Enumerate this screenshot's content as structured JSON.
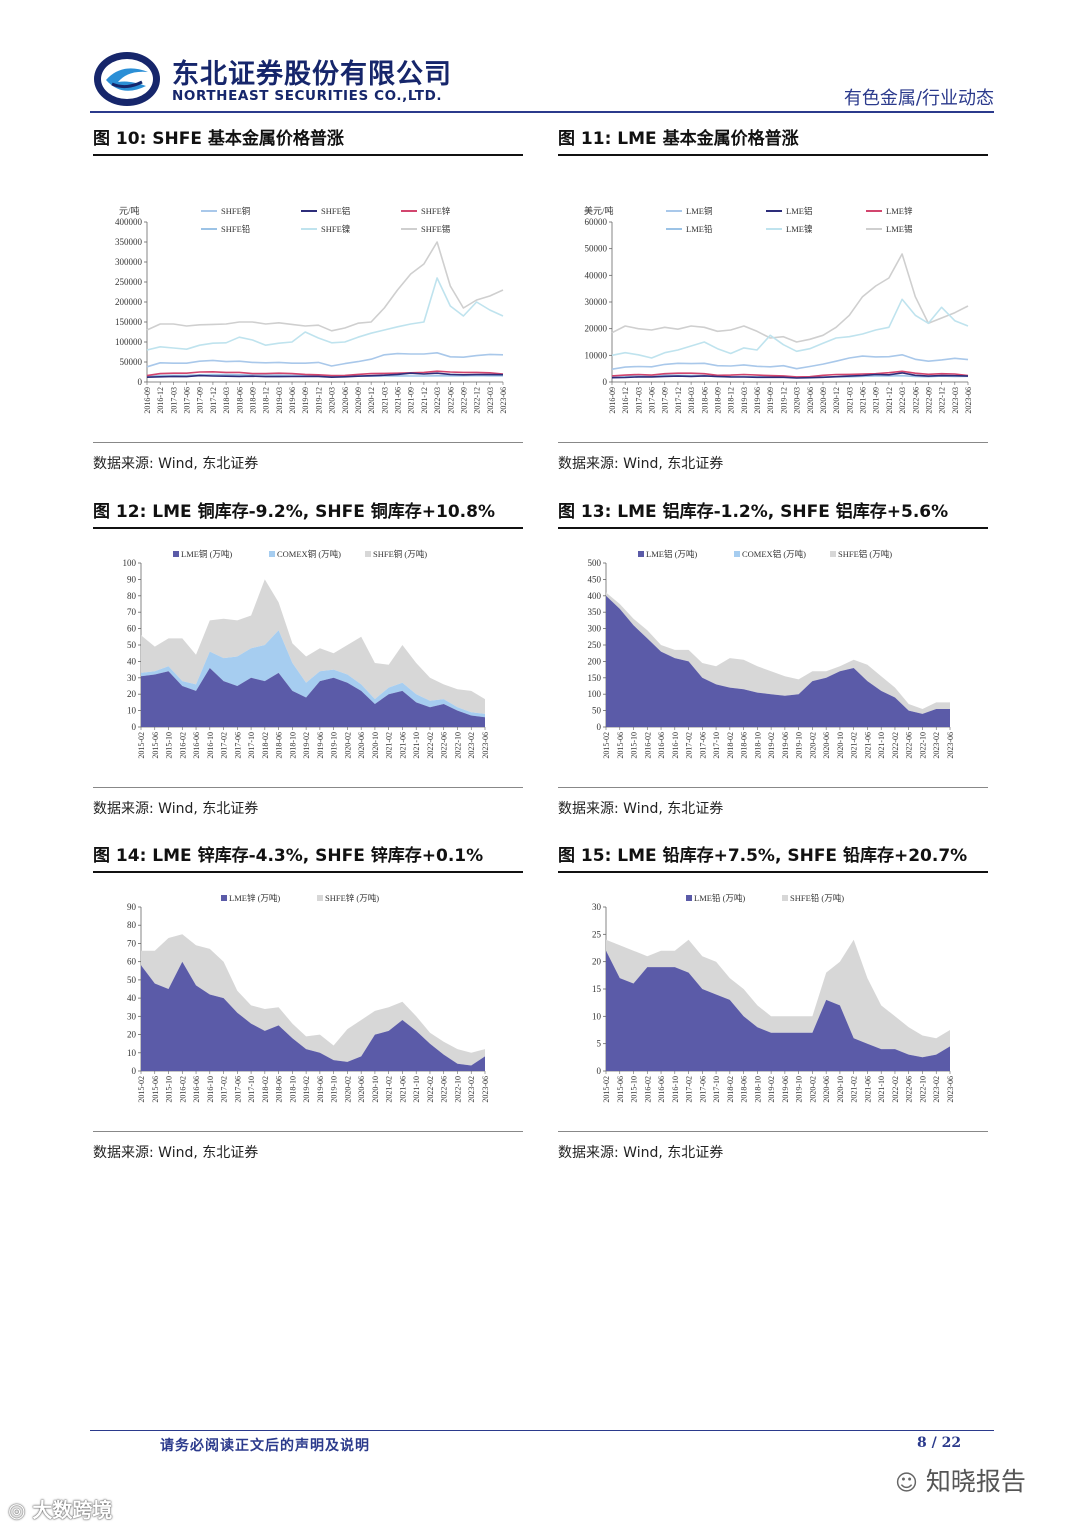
{
  "header": {
    "company_cn": "东北证券股份有限公司",
    "company_en": "NORTHEAST SECURITIES CO.,LTD.",
    "section": "有色金属/行业动态",
    "brand_color": "#16266b"
  },
  "figures": [
    {
      "title": "图 10: SHFE 基本金属价格普涨",
      "source": "数据来源: Wind, 东北证券"
    },
    {
      "title": "图 11: LME 基本金属价格普涨",
      "source": "数据来源: Wind, 东北证券"
    },
    {
      "title": "图 12: LME 铜库存-9.2%, SHFE 铜库存+10.8%",
      "source": "数据来源: Wind, 东北证券"
    },
    {
      "title": "图 13: LME 铝库存-1.2%, SHFE 铝库存+5.6%",
      "source": "数据来源: Wind, 东北证券"
    },
    {
      "title": "图 14: LME 锌库存-4.3%, SHFE 锌库存+0.1%",
      "source": "数据来源: Wind, 东北证券"
    },
    {
      "title": "图 15: LME 铅库存+7.5%, SHFE 铅库存+20.7%",
      "source": "数据来源: Wind, 东北证券"
    }
  ],
  "footer": {
    "note": "请务必阅读正文后的声明及说明",
    "page": "8 / 22",
    "watermark_right": "知晓报告",
    "watermark_left": "大数跨境"
  },
  "chart_data": [
    {
      "type": "line",
      "title": "SHFE 基本金属价格普涨",
      "ylabel": "元/吨",
      "ylim": [
        0,
        400000
      ],
      "yticks": [
        0,
        50000,
        100000,
        150000,
        200000,
        250000,
        300000,
        350000,
        400000
      ],
      "xticks": [
        "2016-09",
        "2016-12",
        "2017-03",
        "2017-06",
        "2017-09",
        "2017-12",
        "2018-03",
        "2018-06",
        "2018-09",
        "2018-12",
        "2019-03",
        "2019-06",
        "2019-09",
        "2019-12",
        "2020-03",
        "2020-06",
        "2020-09",
        "2020-12",
        "2021-03",
        "2021-06",
        "2021-09",
        "2021-12",
        "2022-03",
        "2022-06",
        "2022-09",
        "2022-12",
        "2023-03",
        "2023-06"
      ],
      "series": [
        {
          "name": "SHFE铜",
          "color": "#a9c8ea",
          "values": [
            38000,
            48000,
            47000,
            47000,
            52000,
            54000,
            51000,
            52000,
            49000,
            48000,
            49000,
            47000,
            47000,
            49000,
            40000,
            46000,
            51000,
            57000,
            68000,
            71000,
            70000,
            70000,
            73000,
            63000,
            62000,
            66000,
            69000,
            68000
          ]
        },
        {
          "name": "SHFE铝",
          "color": "#2d2d7a",
          "values": [
            12000,
            13000,
            14000,
            13500,
            16000,
            15000,
            14500,
            14000,
            14500,
            13500,
            13600,
            13800,
            14000,
            14000,
            12000,
            13000,
            14500,
            15800,
            17000,
            19000,
            22000,
            20000,
            22000,
            19000,
            18000,
            18500,
            18500,
            18300
          ]
        },
        {
          "name": "SHFE锌",
          "color": "#d2456e",
          "values": [
            16000,
            21000,
            22000,
            22000,
            25000,
            25500,
            24000,
            24000,
            21000,
            21000,
            22000,
            21000,
            19000,
            18000,
            16000,
            16500,
            19000,
            21000,
            21500,
            22000,
            23000,
            24000,
            27000,
            25000,
            24000,
            24000,
            23000,
            20000
          ]
        },
        {
          "name": "SHFE铅",
          "color": "#9cc3e6",
          "values": [
            14000,
            16000,
            16500,
            16500,
            18000,
            18500,
            18500,
            18000,
            17500,
            17500,
            17000,
            16500,
            16500,
            15000,
            14000,
            14500,
            15000,
            14500,
            15000,
            15500,
            15000,
            15000,
            15500,
            15500,
            15500,
            16000,
            15500,
            15500
          ]
        },
        {
          "name": "SHFE镍",
          "color": "#bfe3ee",
          "values": [
            80000,
            88000,
            85000,
            82000,
            92000,
            97000,
            98000,
            112000,
            105000,
            92000,
            97000,
            100000,
            125000,
            110000,
            98000,
            100000,
            112000,
            122000,
            130000,
            138000,
            145000,
            150000,
            260000,
            190000,
            165000,
            200000,
            180000,
            165000
          ]
        },
        {
          "name": "SHFE锡",
          "color": "#cfcfcf",
          "values": [
            130000,
            145000,
            145000,
            140000,
            143000,
            144000,
            145000,
            150000,
            150000,
            145000,
            148000,
            144000,
            140000,
            142000,
            128000,
            135000,
            147000,
            150000,
            185000,
            230000,
            270000,
            295000,
            350000,
            240000,
            185000,
            205000,
            215000,
            230000
          ]
        }
      ]
    },
    {
      "type": "line",
      "title": "LME 基本金属价格普涨",
      "ylabel": "美元/吨",
      "ylim": [
        0,
        60000
      ],
      "yticks": [
        0,
        10000,
        20000,
        30000,
        40000,
        50000,
        60000
      ],
      "xticks": [
        "2016-09",
        "2016-12",
        "2017-03",
        "2017-06",
        "2017-09",
        "2017-12",
        "2018-03",
        "2018-06",
        "2018-09",
        "2018-12",
        "2019-03",
        "2019-06",
        "2019-09",
        "2019-12",
        "2020-03",
        "2020-06",
        "2020-09",
        "2020-12",
        "2021-03",
        "2021-06",
        "2021-09",
        "2021-12",
        "2022-03",
        "2022-06",
        "2022-09",
        "2022-12",
        "2023-03",
        "2023-06"
      ],
      "series": [
        {
          "name": "LME铜",
          "color": "#a9c8ea",
          "values": [
            4800,
            5600,
            5800,
            5700,
            6600,
            7000,
            6900,
            7000,
            6100,
            6000,
            6400,
            5900,
            5700,
            6100,
            5000,
            5800,
            6700,
            7800,
            9000,
            9700,
            9400,
            9500,
            10200,
            8500,
            7800,
            8300,
            8900,
            8400
          ]
        },
        {
          "name": "LME铝",
          "color": "#2d2d7a",
          "values": [
            1600,
            1700,
            1900,
            1900,
            2100,
            2200,
            2100,
            2300,
            2050,
            1900,
            1870,
            1780,
            1750,
            1780,
            1500,
            1600,
            1760,
            2000,
            2200,
            2450,
            2800,
            2700,
            3400,
            2500,
            2200,
            2400,
            2350,
            2200
          ]
        },
        {
          "name": "LME锌",
          "color": "#d2456e",
          "values": [
            2300,
            2600,
            2800,
            2600,
            3100,
            3300,
            3300,
            3100,
            2500,
            2600,
            2800,
            2600,
            2400,
            2300,
            1900,
            2000,
            2500,
            2800,
            2850,
            2950,
            3100,
            3500,
            4000,
            3300,
            2900,
            3100,
            3000,
            2400
          ]
        },
        {
          "name": "LME铅",
          "color": "#9cc3e6",
          "values": [
            1900,
            2100,
            2300,
            2100,
            2500,
            2500,
            2400,
            2400,
            2000,
            2000,
            2050,
            1900,
            2100,
            1900,
            1700,
            1750,
            1850,
            2000,
            1950,
            2150,
            2250,
            2300,
            2350,
            2100,
            2000,
            2200,
            2100,
            2150
          ]
        },
        {
          "name": "LME镍",
          "color": "#bfe3ee",
          "values": [
            10000,
            11000,
            10200,
            9000,
            11000,
            12000,
            13500,
            15000,
            12500,
            10700,
            12800,
            12000,
            17500,
            14000,
            11500,
            12500,
            14500,
            16500,
            17000,
            18000,
            19500,
            20500,
            31000,
            25000,
            22000,
            28000,
            23000,
            21000
          ]
        },
        {
          "name": "LME锡",
          "color": "#cfcfcf",
          "values": [
            18500,
            21000,
            20000,
            19500,
            20500,
            19800,
            21000,
            20500,
            19000,
            19500,
            21000,
            19000,
            16500,
            17000,
            15000,
            16000,
            17500,
            20500,
            25000,
            32000,
            36000,
            39000,
            48000,
            32000,
            22000,
            24000,
            26000,
            28500
          ]
        }
      ]
    },
    {
      "type": "area",
      "stacked": true,
      "title": "LME 铜库存-9.2%, SHFE 铜库存+10.8%",
      "ylim": [
        0,
        100
      ],
      "yticks": [
        0,
        10,
        20,
        30,
        40,
        50,
        60,
        70,
        80,
        90,
        100
      ],
      "xticks": [
        "2015-02",
        "2015-06",
        "2015-10",
        "2016-02",
        "2016-06",
        "2016-10",
        "2017-02",
        "2017-06",
        "2017-10",
        "2018-02",
        "2018-06",
        "2018-10",
        "2019-02",
        "2019-06",
        "2019-10",
        "2020-02",
        "2020-06",
        "2020-10",
        "2021-02",
        "2021-06",
        "2021-10",
        "2022-02",
        "2022-06",
        "2022-10",
        "2023-02",
        "2023-06"
      ],
      "series": [
        {
          "name": "LME铜 (万吨)",
          "color": "#5b5ba8",
          "values": [
            31,
            32,
            34,
            25,
            22,
            36,
            28,
            25,
            30,
            28,
            33,
            22,
            18,
            28,
            30,
            27,
            22,
            14,
            20,
            22,
            15,
            12,
            14,
            10,
            7,
            6
          ]
        },
        {
          "name": "COMEX铜 (万吨)",
          "color": "#a6cdf0",
          "values": [
            2,
            2,
            3,
            3,
            4,
            10,
            14,
            18,
            18,
            22,
            26,
            17,
            9,
            6,
            5,
            5,
            4,
            3,
            4,
            5,
            5,
            4,
            3,
            2,
            2,
            2
          ]
        },
        {
          "name": "SHFE铜 (万吨)",
          "color": "#d7d7d7",
          "values": [
            23,
            15,
            17,
            26,
            18,
            19,
            24,
            22,
            20,
            40,
            17,
            12,
            16,
            14,
            10,
            18,
            29,
            22,
            14,
            23,
            19,
            14,
            9,
            11,
            13,
            9
          ]
        }
      ]
    },
    {
      "type": "area",
      "stacked": true,
      "title": "LME 铝库存-1.2%, SHFE 铝库存+5.6%",
      "ylim": [
        0,
        500
      ],
      "yticks": [
        0,
        50,
        100,
        150,
        200,
        250,
        300,
        350,
        400,
        450,
        500
      ],
      "xticks": [
        "2015-02",
        "2015-06",
        "2015-10",
        "2016-02",
        "2016-06",
        "2016-10",
        "2017-02",
        "2017-06",
        "2017-10",
        "2018-02",
        "2018-06",
        "2018-10",
        "2019-02",
        "2019-06",
        "2019-10",
        "2020-02",
        "2020-06",
        "2020-10",
        "2021-02",
        "2021-06",
        "2021-10",
        "2022-02",
        "2022-06",
        "2022-10",
        "2023-02",
        "2023-06"
      ],
      "series": [
        {
          "name": "LME铝 (万吨)",
          "color": "#5b5ba8",
          "values": [
            400,
            360,
            310,
            270,
            230,
            210,
            200,
            150,
            130,
            120,
            115,
            105,
            100,
            95,
            100,
            140,
            150,
            170,
            180,
            140,
            110,
            90,
            50,
            40,
            55,
            55
          ]
        },
        {
          "name": "COMEX铝 (万吨)",
          "color": "#a6cdf0",
          "values": [
            0,
            0,
            0,
            0,
            0,
            0,
            0,
            0,
            0,
            0,
            0,
            0,
            0,
            0,
            0,
            0,
            0,
            0,
            0,
            0,
            0,
            0,
            0,
            0,
            0,
            0
          ]
        },
        {
          "name": "SHFE铝 (万吨)",
          "color": "#d7d7d7",
          "values": [
            10,
            15,
            20,
            25,
            20,
            25,
            35,
            45,
            55,
            90,
            90,
            80,
            70,
            60,
            45,
            30,
            20,
            15,
            25,
            50,
            45,
            30,
            20,
            15,
            20,
            20
          ]
        }
      ]
    },
    {
      "type": "area",
      "stacked": true,
      "title": "LME 锌库存-4.3%, SHFE 锌库存+0.1%",
      "ylim": [
        0,
        90
      ],
      "yticks": [
        0,
        10,
        20,
        30,
        40,
        50,
        60,
        70,
        80,
        90
      ],
      "xticks": [
        "2015-02",
        "2015-06",
        "2015-10",
        "2016-02",
        "2016-06",
        "2016-10",
        "2017-02",
        "2017-06",
        "2017-10",
        "2018-02",
        "2018-06",
        "2018-10",
        "2019-02",
        "2019-06",
        "2019-10",
        "2020-02",
        "2020-06",
        "2020-10",
        "2021-02",
        "2021-06",
        "2021-10",
        "2022-02",
        "2022-06",
        "2022-10",
        "2023-02",
        "2023-06"
      ],
      "series": [
        {
          "name": "LME锌 (万吨)",
          "color": "#5b5ba8",
          "values": [
            58,
            48,
            45,
            60,
            47,
            42,
            40,
            32,
            26,
            22,
            25,
            18,
            12,
            10,
            6,
            5,
            8,
            20,
            22,
            28,
            22,
            15,
            9,
            4,
            3,
            8
          ]
        },
        {
          "name": "SHFE锌 (万吨)",
          "color": "#d7d7d7",
          "values": [
            8,
            18,
            28,
            15,
            22,
            25,
            20,
            12,
            10,
            12,
            10,
            8,
            7,
            10,
            8,
            18,
            20,
            13,
            13,
            10,
            8,
            6,
            7,
            8,
            7,
            4
          ]
        }
      ]
    },
    {
      "type": "area",
      "stacked": true,
      "title": "LME 铅库存+7.5%, SHFE 铅库存+20.7%",
      "ylim": [
        0,
        30
      ],
      "yticks": [
        0,
        5,
        10,
        15,
        20,
        25,
        30
      ],
      "xticks": [
        "2015-02",
        "2015-06",
        "2015-10",
        "2016-02",
        "2016-06",
        "2016-10",
        "2017-02",
        "2017-06",
        "2017-10",
        "2018-02",
        "2018-06",
        "2018-10",
        "2019-02",
        "2019-06",
        "2019-10",
        "2020-02",
        "2020-06",
        "2020-10",
        "2021-02",
        "2021-06",
        "2021-10",
        "2022-02",
        "2022-06",
        "2022-10",
        "2023-02",
        "2023-06"
      ],
      "series": [
        {
          "name": "LME铅 (万吨)",
          "color": "#5b5ba8",
          "values": [
            22,
            17,
            16,
            19,
            19,
            19,
            18,
            15,
            14,
            13,
            10,
            8,
            7,
            7,
            7,
            7,
            13,
            12,
            6,
            5,
            4,
            4,
            3,
            2.5,
            3,
            4.5
          ]
        },
        {
          "name": "SHFE铅 (万吨)",
          "color": "#d7d7d7",
          "values": [
            2,
            6,
            6,
            2,
            3,
            3,
            6,
            6,
            6,
            4,
            5,
            4,
            3,
            3,
            3,
            3,
            5,
            8,
            18,
            12,
            8,
            6,
            5,
            4,
            3,
            3
          ]
        }
      ]
    }
  ]
}
